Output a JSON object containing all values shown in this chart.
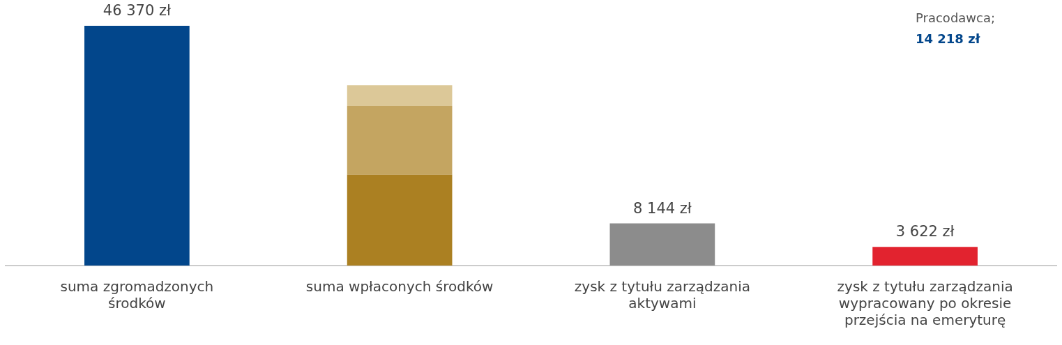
{
  "chart_data": {
    "type": "bar",
    "stacked": true,
    "categories": [
      "suma zgromadzonych środków",
      "suma wpłaconych środków",
      "zysk z tytułu zarządzania aktywami",
      "zysk z tytułu zarządzania wypracowany po okresie przejścia na emeryturę"
    ],
    "series": [
      {
        "colors": [
          "#02468b",
          "#ab8022",
          "#8c8c8c",
          "#e2232f"
        ],
        "values": [
          46370,
          17580,
          8144,
          3622
        ],
        "value_labels": [
          "46 370 zł",
          null,
          "8 144 zł",
          "3 622 zł"
        ]
      },
      {
        "color": "#c4a561",
        "values": [
          null,
          13290,
          null,
          null
        ]
      },
      {
        "color": "#dcc898",
        "values": [
          null,
          4010,
          null,
          null
        ]
      }
    ],
    "annotations": [
      "Pracodawca;",
      "14 218 zł"
    ],
    "grid": false,
    "legend": false
  }
}
